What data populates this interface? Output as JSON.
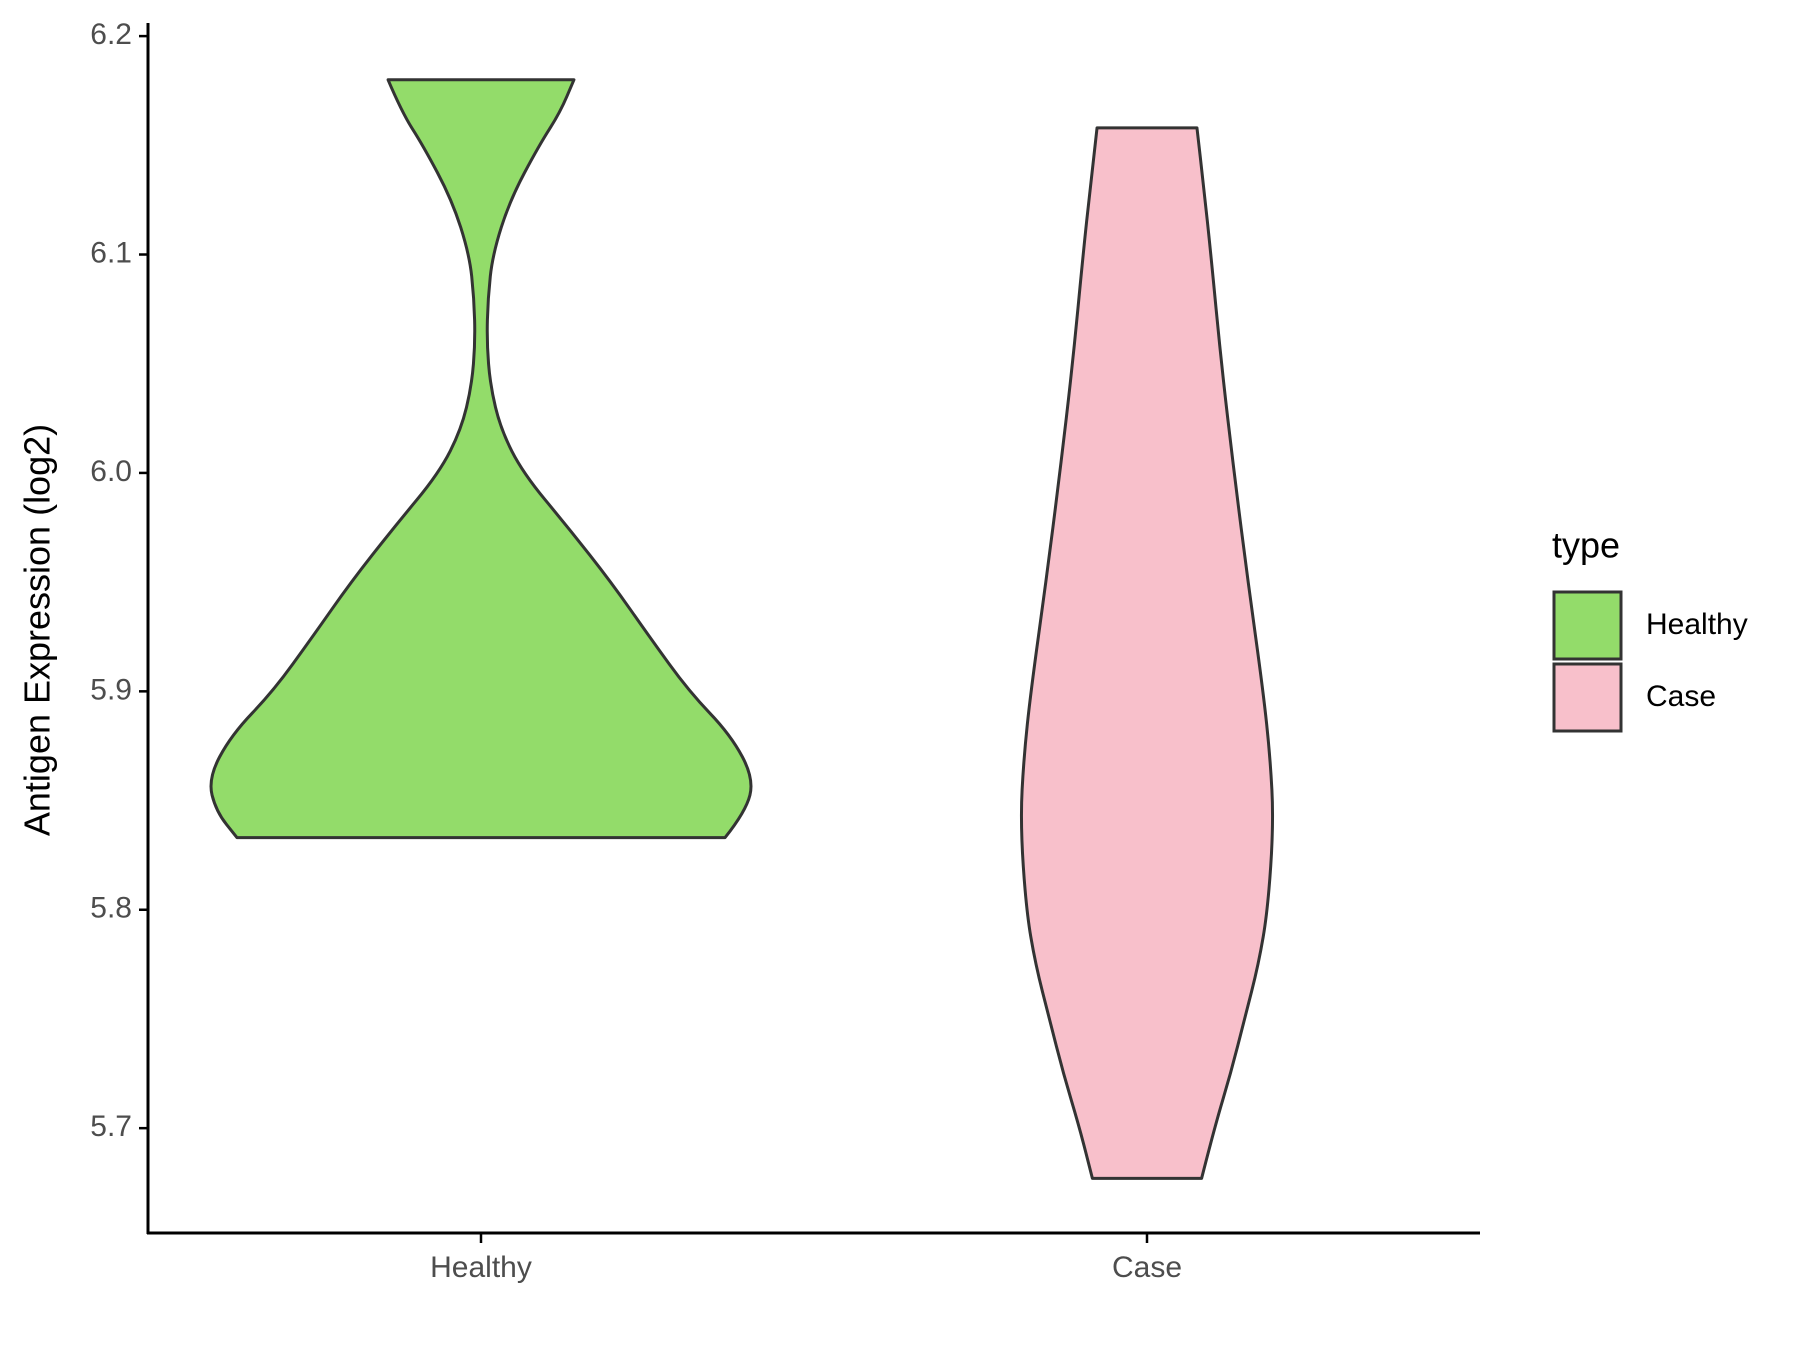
{
  "chart_data": {
    "type": "violin",
    "y_label": "Antigen Expression (log2)",
    "categories": [
      "Healthy",
      "Case"
    ],
    "legend_title": "type",
    "legend_position": "right",
    "ylim": [
      5.652,
      6.206
    ],
    "yticks": [
      {
        "value": 5.7,
        "label": "5.7"
      },
      {
        "value": 5.8,
        "label": "5.8"
      },
      {
        "value": 5.9,
        "label": "5.9"
      },
      {
        "value": 6.0,
        "label": "6.0"
      },
      {
        "value": 6.1,
        "label": "6.1"
      },
      {
        "value": 6.2,
        "label": "6.2"
      }
    ],
    "series": [
      {
        "name": "Healthy",
        "color": "#93dc6a",
        "values": [
          5.833,
          5.845,
          5.86,
          5.88,
          5.9,
          5.925,
          5.95,
          5.975,
          6.0,
          6.02,
          6.04,
          6.06,
          6.08,
          6.1,
          6.125,
          6.15,
          6.165,
          6.18
        ],
        "density": [
          210,
          228,
          235,
          215,
          179,
          145,
          112,
          75,
          36,
          17,
          8,
          5,
          6,
          10,
          25,
          50,
          68,
          80
        ]
      },
      {
        "name": "Case",
        "color": "#f8c0cb",
        "values": [
          5.677,
          5.7,
          5.725,
          5.75,
          5.775,
          5.8,
          5.84,
          5.87,
          5.9,
          5.95,
          6.0,
          6.05,
          6.1,
          6.13,
          6.158
        ],
        "density": [
          47,
          58,
          72,
          84,
          96,
          104,
          109,
          106,
          100,
          87,
          75,
          64,
          55,
          49,
          43
        ]
      }
    ]
  }
}
